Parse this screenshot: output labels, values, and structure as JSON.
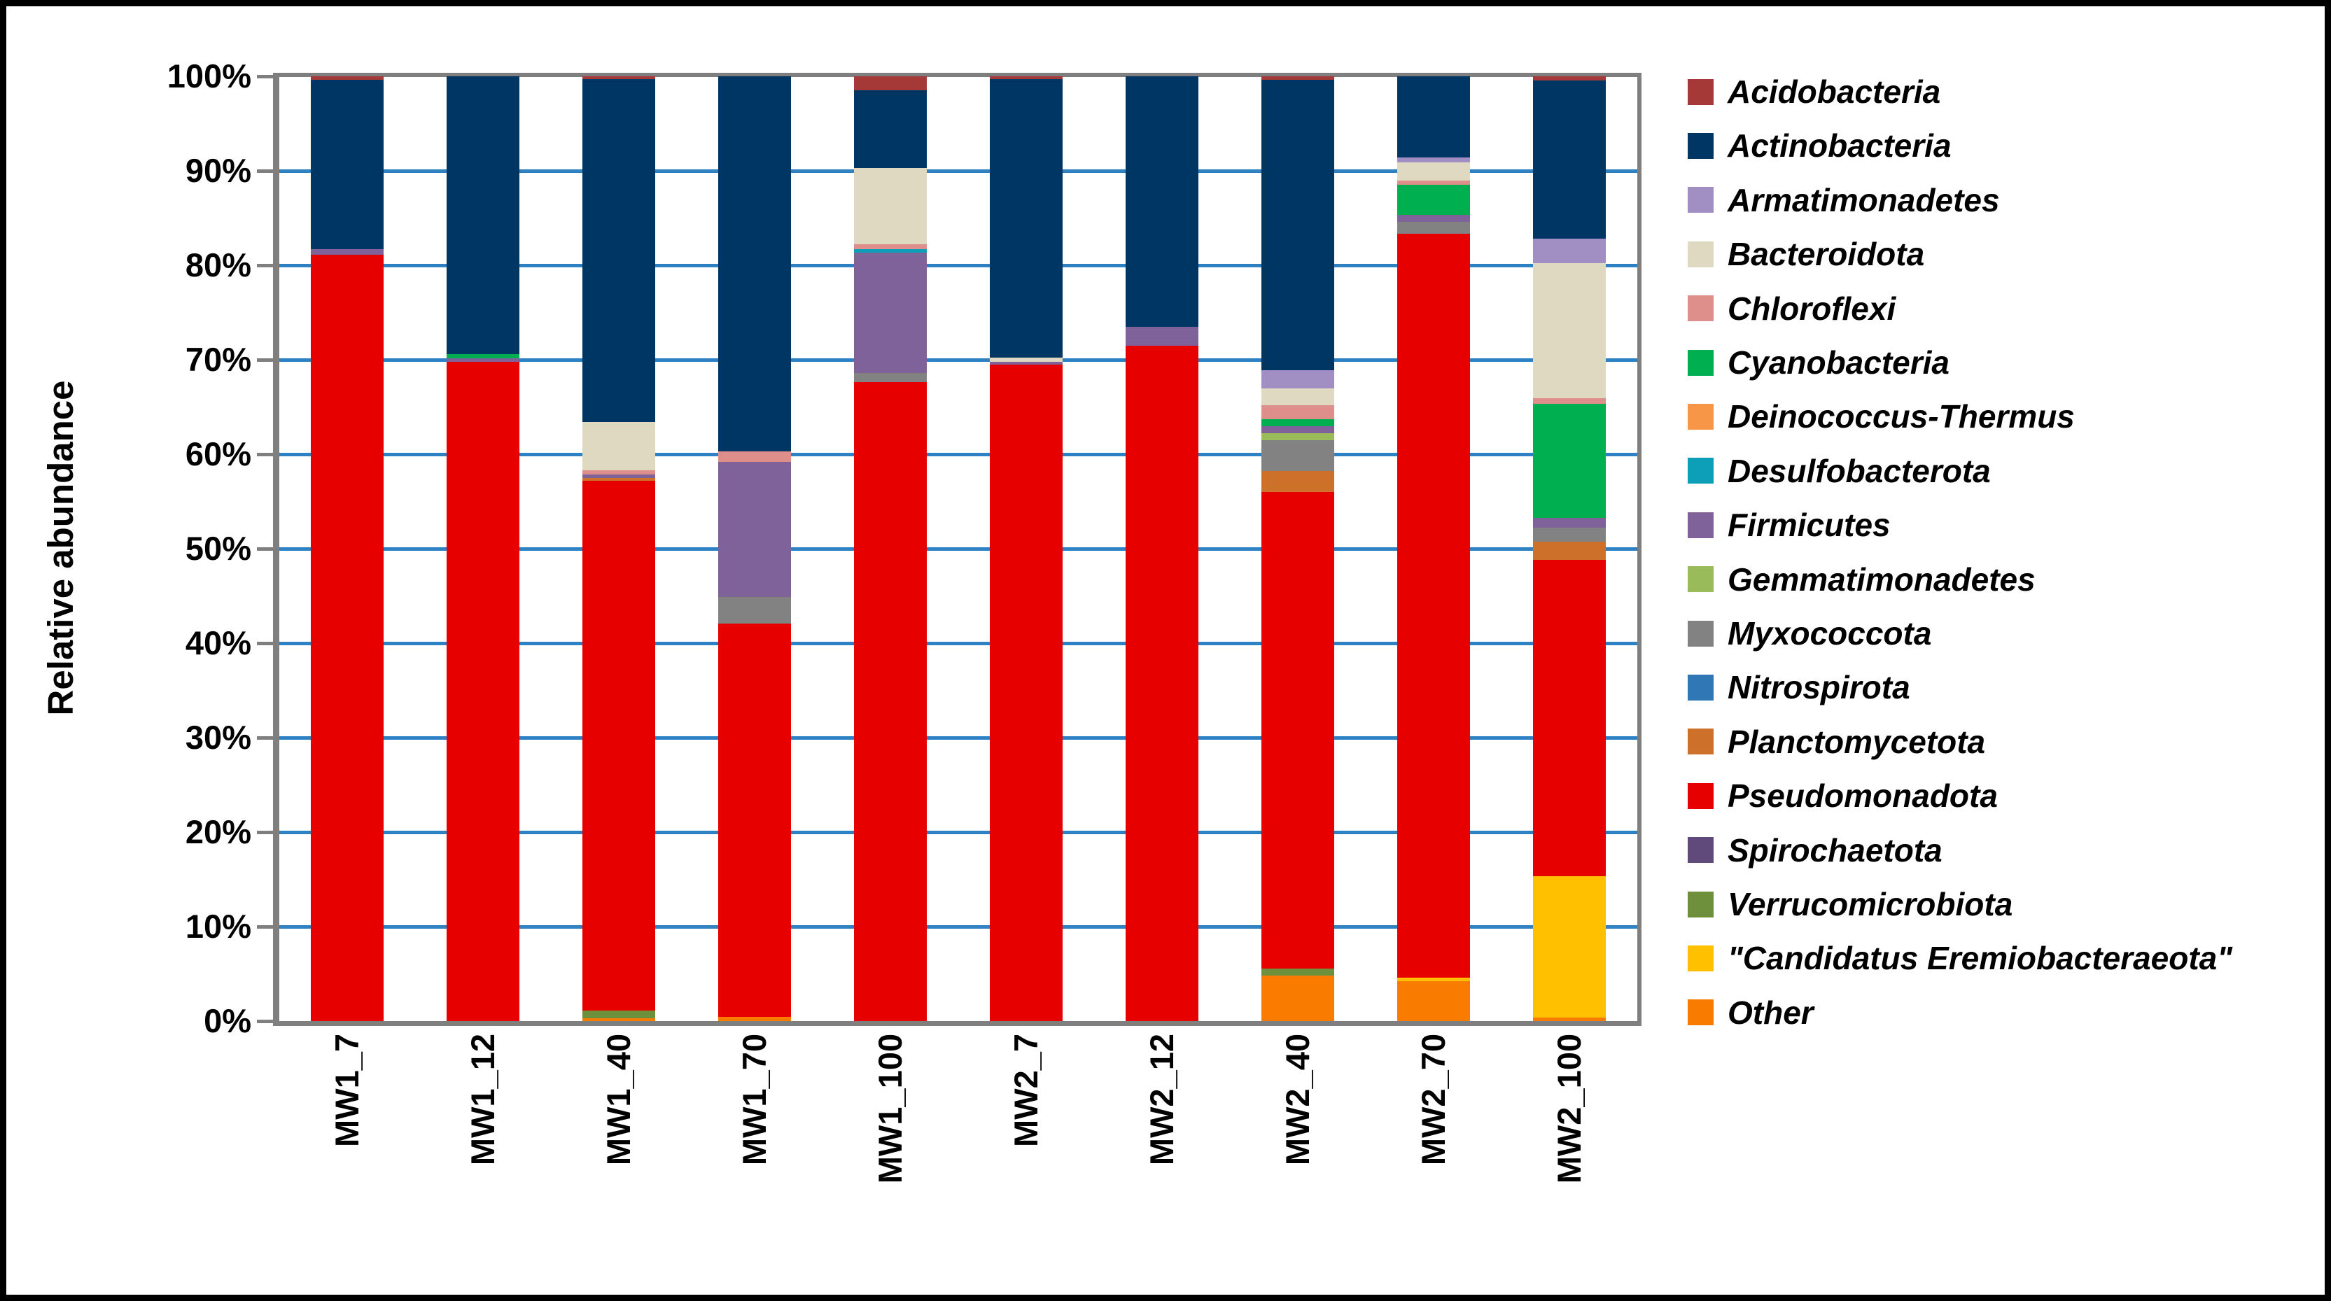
{
  "figure": {
    "background": "#ffffff",
    "outer_border_color": "#000000",
    "plot_border_color": "#7f7f7f",
    "gridline_color": "#2e81c2"
  },
  "y_axis": {
    "title": "Relative abundance",
    "tick_labels": [
      "0%",
      "10%",
      "20%",
      "30%",
      "40%",
      "50%",
      "60%",
      "70%",
      "80%",
      "90%",
      "100%"
    ]
  },
  "x_axis": {
    "categories": [
      "MW1_7",
      "MW1_12",
      "MW1_40",
      "MW1_70",
      "MW1_100",
      "MW2_7",
      "MW2_12",
      "MW2_40",
      "MW2_70",
      "MW2_100"
    ]
  },
  "legend": {
    "position": "right",
    "items": [
      {
        "label": "Acidobacteria",
        "color": "#a43937"
      },
      {
        "label": "Actinobacteria",
        "color": "#003663"
      },
      {
        "label": "Armatimonadetes",
        "color": "#a18fc4"
      },
      {
        "label": "Bacteroidota",
        "color": "#dfd9c2"
      },
      {
        "label": "Chloroflexi",
        "color": "#de8f8c"
      },
      {
        "label": "Cyanobacteria",
        "color": "#00b050"
      },
      {
        "label": "Deinococcus-Thermus",
        "color": "#f79646"
      },
      {
        "label": "Desulfobacterota",
        "color": "#0e9fb8"
      },
      {
        "label": "Firmicutes",
        "color": "#7e6299"
      },
      {
        "label": "Gemmatimonadetes",
        "color": "#9abb59"
      },
      {
        "label": "Myxococcota",
        "color": "#828282"
      },
      {
        "label": "Nitrospirota",
        "color": "#2f77b5"
      },
      {
        "label": "Planctomycetota",
        "color": "#cd7029"
      },
      {
        "label": "Pseudomonadota",
        "color": "#e60000"
      },
      {
        "label": "Spirochaetota",
        "color": "#5f4a7b"
      },
      {
        "label": "Verrucomicrobiota",
        "color": "#6e8f3b"
      },
      {
        "label": "\"Candidatus Eremiobacteraeota\"",
        "color": "#ffc000"
      },
      {
        "label": "Other",
        "color": "#f97b00"
      }
    ]
  },
  "chart_data": {
    "type": "bar",
    "stacked": true,
    "stack_order": "first legend item on top",
    "units": "percent",
    "ylabel": "Relative abundance",
    "ylim": [
      0,
      100
    ],
    "grid": "horizontal, every 10%",
    "legend_position": "right",
    "categories": [
      "MW1_7",
      "MW1_12",
      "MW1_40",
      "MW1_70",
      "MW1_100",
      "MW2_7",
      "MW2_12",
      "MW2_40",
      "MW2_70",
      "MW2_100"
    ],
    "series": [
      {
        "name": "Acidobacteria",
        "color": "#a43937",
        "values": [
          0.4,
          0,
          0.3,
          0,
          1.5,
          0.3,
          0,
          0.4,
          0,
          0.45
        ]
      },
      {
        "name": "Actinobacteria",
        "color": "#003663",
        "values": [
          17.9,
          29.4,
          36.3,
          39.7,
          8.2,
          29.5,
          26.5,
          30.7,
          8.6,
          16.7
        ]
      },
      {
        "name": "Armatimonadetes",
        "color": "#a18fc4",
        "values": [
          0,
          0,
          0,
          0,
          0,
          0,
          0,
          1.9,
          0.5,
          2.6
        ]
      },
      {
        "name": "Bacteroidota",
        "color": "#dfd9c2",
        "values": [
          0,
          0,
          5.1,
          0,
          8.1,
          0.4,
          0,
          1.8,
          1.9,
          14.3
        ]
      },
      {
        "name": "Chloroflexi",
        "color": "#de8f8c",
        "values": [
          0,
          0,
          0.45,
          1.1,
          0.5,
          0,
          0,
          1.5,
          0.5,
          0.6
        ]
      },
      {
        "name": "Cyanobacteria",
        "color": "#00b050",
        "values": [
          0,
          0.45,
          0,
          0,
          0,
          0,
          0,
          0.7,
          3.2,
          12.1
        ]
      },
      {
        "name": "Deinococcus-Thermus",
        "color": "#f79646",
        "values": [
          0,
          0,
          0,
          0,
          0,
          0,
          0,
          0,
          0,
          0
        ]
      },
      {
        "name": "Desulfobacterota",
        "color": "#0e9fb8",
        "values": [
          0,
          0,
          0,
          0,
          0.35,
          0,
          0,
          0,
          0,
          0
        ]
      },
      {
        "name": "Firmicutes",
        "color": "#7e6299",
        "values": [
          0.6,
          0.35,
          0.4,
          14.3,
          12.75,
          0.3,
          2.0,
          0.8,
          0.7,
          1.0
        ]
      },
      {
        "name": "Gemmatimonadetes",
        "color": "#9abb59",
        "values": [
          0,
          0,
          0,
          0,
          0,
          0,
          0,
          0.7,
          0,
          0
        ]
      },
      {
        "name": "Myxococcota",
        "color": "#828282",
        "values": [
          0,
          0,
          0,
          2.85,
          1.0,
          0,
          0,
          3.25,
          1.3,
          1.5
        ]
      },
      {
        "name": "Nitrospirota",
        "color": "#2f77b5",
        "values": [
          0,
          0,
          0,
          0,
          0,
          0,
          0,
          0,
          0,
          0
        ]
      },
      {
        "name": "Planctomycetota",
        "color": "#cd7029",
        "values": [
          0,
          0,
          0.25,
          0,
          0,
          0,
          0,
          2.25,
          0,
          1.9
        ]
      },
      {
        "name": "Pseudomonadota",
        "color": "#e60000",
        "values": [
          81.1,
          69.8,
          56.1,
          41.6,
          67.6,
          69.5,
          71.5,
          50.45,
          78.7,
          33.5
        ]
      },
      {
        "name": "Spirochaetota",
        "color": "#5f4a7b",
        "values": [
          0,
          0,
          0,
          0,
          0,
          0,
          0,
          0,
          0,
          0
        ]
      },
      {
        "name": "Verrucomicrobiota",
        "color": "#6e8f3b",
        "values": [
          0,
          0,
          0.8,
          0,
          0,
          0,
          0,
          0.75,
          0,
          0
        ]
      },
      {
        "name": "\"Candidatus Eremiobacteraeota\"",
        "color": "#ffc000",
        "values": [
          0,
          0,
          0,
          0,
          0,
          0,
          0,
          0,
          0.4,
          15.0
        ]
      },
      {
        "name": "Other",
        "color": "#f97b00",
        "values": [
          0,
          0,
          0.3,
          0.45,
          0,
          0,
          0,
          4.8,
          4.2,
          0.35
        ]
      }
    ]
  }
}
